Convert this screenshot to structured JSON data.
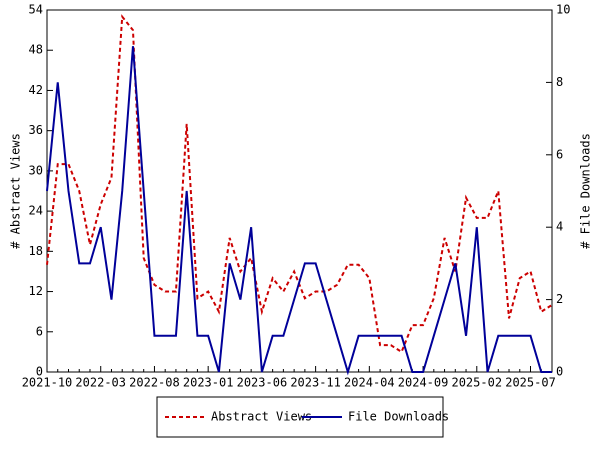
{
  "chart_data": {
    "type": "line",
    "categories": [
      "2021-10",
      null,
      null,
      null,
      null,
      "2022-03",
      null,
      null,
      null,
      null,
      "2022-08",
      null,
      null,
      null,
      null,
      "2023-01",
      null,
      null,
      null,
      null,
      "2023-06",
      null,
      null,
      null,
      null,
      "2023-11",
      null,
      null,
      null,
      null,
      "2024-04",
      null,
      null,
      null,
      null,
      "2024-09",
      null,
      null,
      null,
      null,
      "2025-02",
      null,
      null,
      null,
      null,
      "2025-07",
      null,
      null
    ],
    "series": [
      {
        "name": "Abstract Views",
        "color": "#cc0000",
        "dash": true,
        "values": [
          16,
          31,
          31,
          27,
          19,
          25,
          29,
          53,
          51,
          17,
          13,
          12,
          12,
          37,
          11,
          12,
          9,
          20,
          15,
          17,
          9,
          14,
          12,
          15,
          11,
          12,
          12,
          13,
          16,
          16,
          14,
          4,
          4,
          3,
          7,
          7,
          11,
          20,
          15,
          26,
          23,
          23,
          27,
          8,
          14,
          15,
          9,
          10
        ]
      },
      {
        "name": "File Downloads",
        "color": "#000099",
        "axis": "y2",
        "values": [
          5,
          8,
          5,
          3,
          3,
          4,
          2,
          5,
          9,
          5,
          1,
          1,
          1,
          5,
          1,
          1,
          0,
          3,
          2,
          4,
          0,
          1,
          1,
          2,
          3,
          3,
          2,
          1,
          0,
          1,
          1,
          1,
          1,
          1,
          0,
          0,
          1,
          2,
          3,
          1,
          4,
          0,
          1,
          1,
          1,
          1,
          0,
          0
        ]
      }
    ],
    "ylabel": "# Abstract Views",
    "y2label": "# File Downloads",
    "ylim": [
      0,
      54
    ],
    "yticks": [
      0,
      6,
      12,
      18,
      24,
      30,
      36,
      42,
      48,
      54
    ],
    "y2lim": [
      0,
      10
    ],
    "y2ticks": [
      0,
      2,
      4,
      6,
      8,
      10
    ],
    "legend": "bottom"
  }
}
